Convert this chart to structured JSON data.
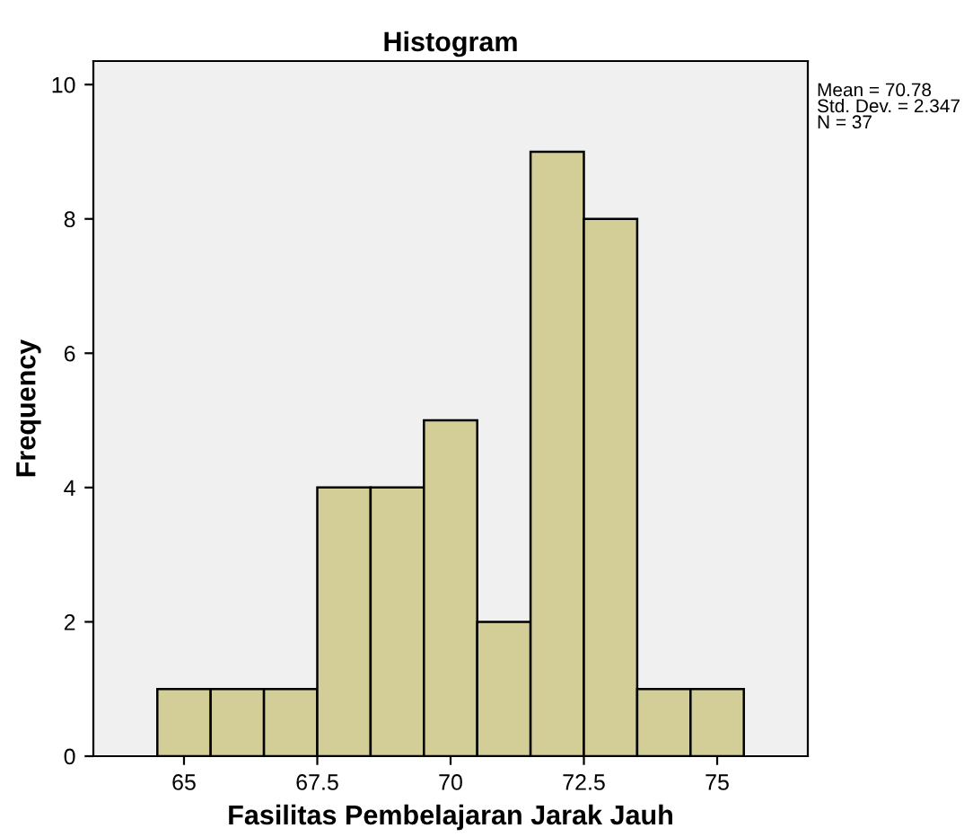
{
  "chart_data": {
    "type": "histogram",
    "title": "Histogram",
    "xlabel": "Fasilitas Pembelajaran Jarak Jauh",
    "ylabel": "Frequency",
    "bins": [
      64.5,
      65.5,
      66.5,
      67.5,
      68.5,
      69.5,
      70.5,
      71.5,
      72.5,
      73.5,
      74.5,
      75.5
    ],
    "values": [
      1,
      1,
      1,
      4,
      4,
      5,
      2,
      9,
      8,
      1,
      1
    ],
    "color": "#d3ce97",
    "xlim": [
      63.3,
      76.7
    ],
    "xticks": [
      65,
      67.5,
      70,
      72.5,
      75
    ],
    "ylim": [
      0,
      10.35
    ],
    "yticks": [
      0,
      2,
      4,
      6,
      8,
      10
    ],
    "annotations": [
      "Mean = 70.78\nStd. Dev. = 2.347\nN = 37"
    ],
    "grid": false,
    "legend": false
  }
}
